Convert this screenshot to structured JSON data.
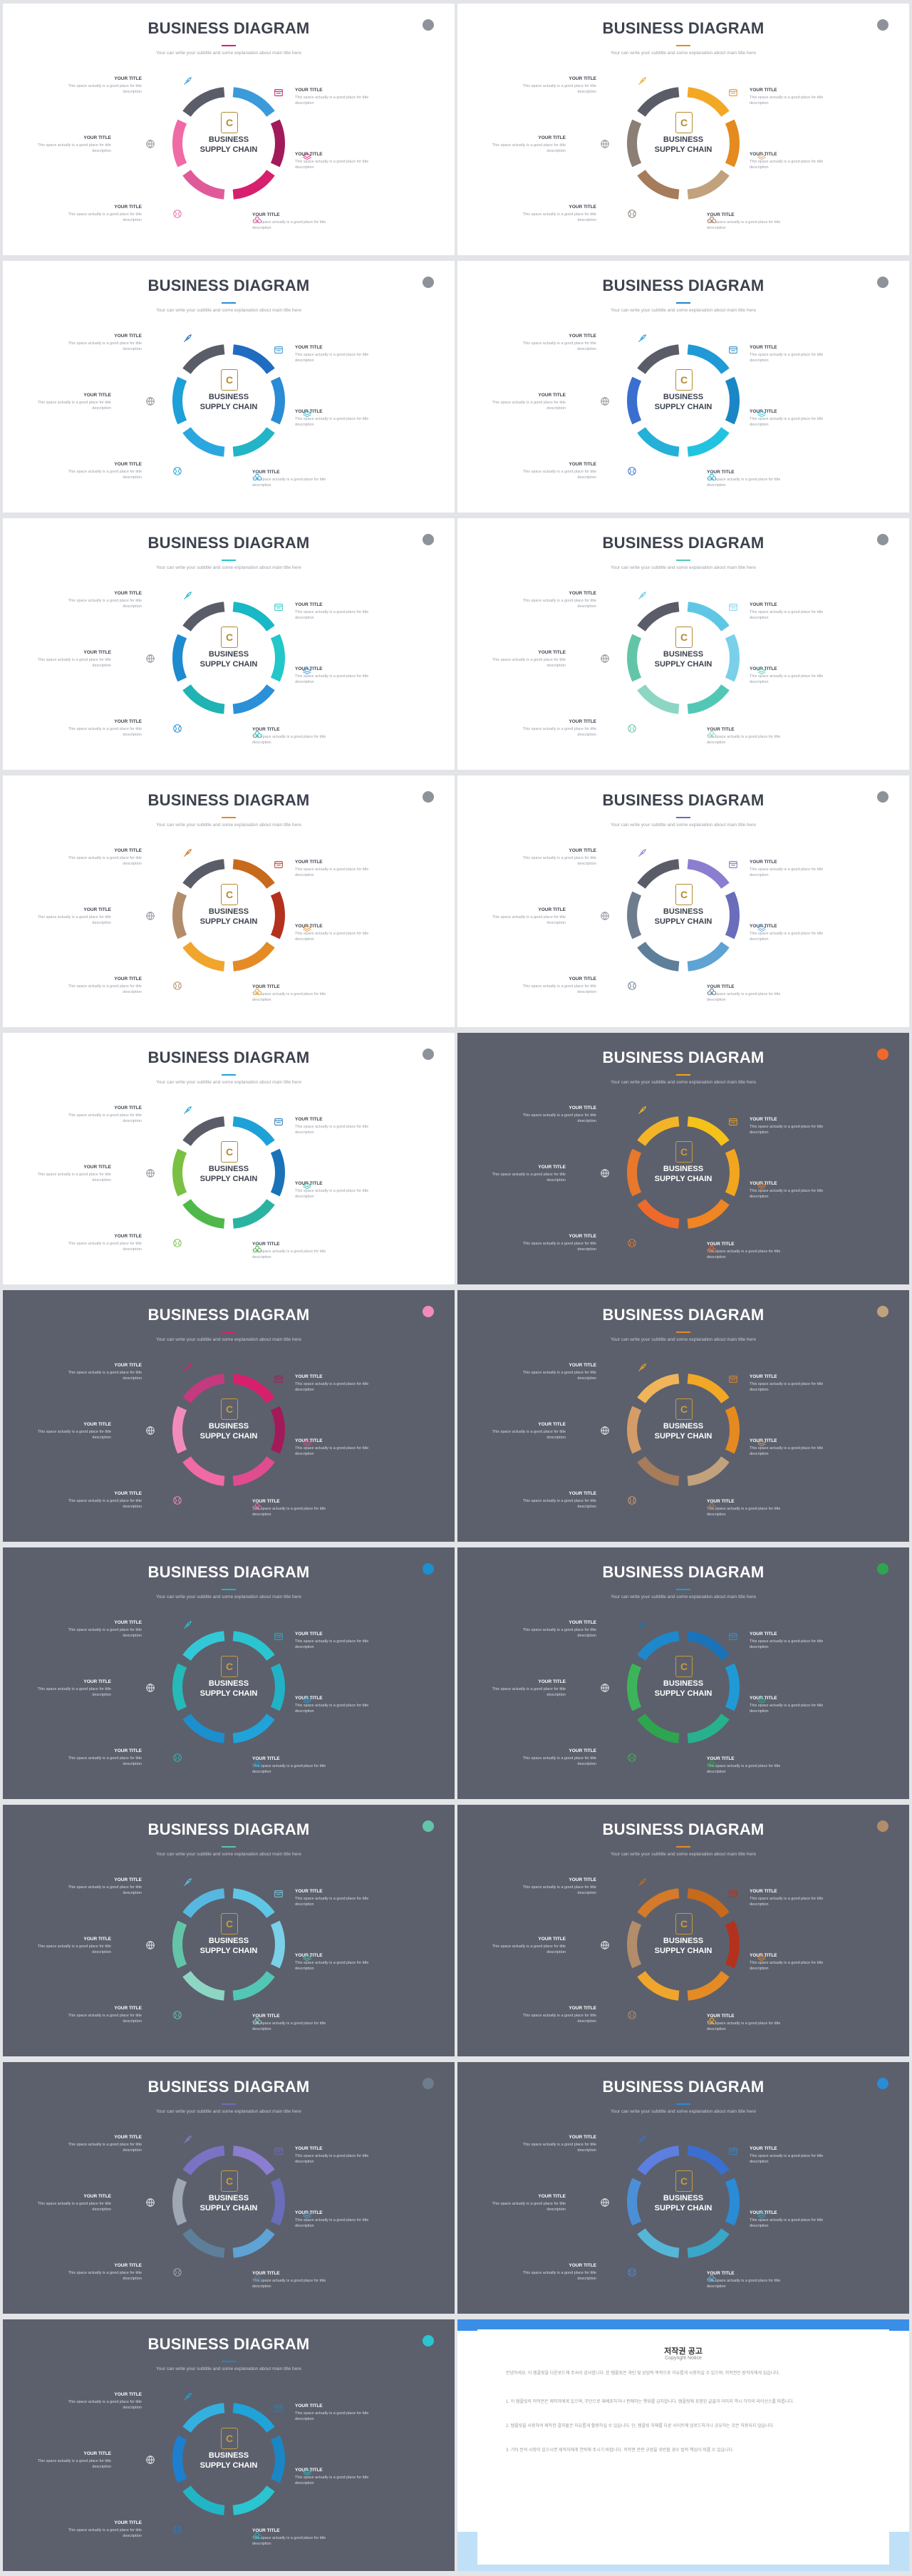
{
  "common": {
    "title": "BUSINESS DIAGRAM",
    "subtitle": "Your can write your subtitle and some explanation about main title here",
    "center_line1": "BUSINESS",
    "center_line2": "SUPPLY CHAIN",
    "logo_letter": "C",
    "item_title": "YOUR TITLE",
    "item_desc_1": "This space actually is a good place for title",
    "item_desc_2": "description",
    "icons": [
      "rocket-icon",
      "browser-icon",
      "globe-icon",
      "layers-icon",
      "basketball-icon",
      "binoculars-icon"
    ]
  },
  "slides": [
    {
      "theme": "light",
      "colors": [
        "#3b9ad9",
        "#a31a5a",
        "#d81f6e",
        "#e05a9a",
        "#f06aa6",
        "#5a5d68"
      ],
      "accent": "#d81f6e",
      "badge": "#8e929b"
    },
    {
      "theme": "light",
      "colors": [
        "#f2a825",
        "#e58a1f",
        "#c1a27c",
        "#a67c5b",
        "#8b7e74",
        "#5a5d68"
      ],
      "accent": "#e58a1f",
      "badge": "#8e929b"
    },
    {
      "theme": "light",
      "colors": [
        "#1f6cc1",
        "#2a8bd6",
        "#22b5c6",
        "#2aa7e0",
        "#1d9fd8",
        "#5a5d68"
      ],
      "accent": "#2a8bd6",
      "badge": "#8e929b"
    },
    {
      "theme": "light",
      "colors": [
        "#1f9ad6",
        "#1b86c6",
        "#22c3e0",
        "#24b0d8",
        "#3a6fd0",
        "#5a5d68"
      ],
      "accent": "#1b86c6",
      "badge": "#8e929b"
    },
    {
      "theme": "light",
      "colors": [
        "#18b8c6",
        "#22c7c9",
        "#2a90d8",
        "#1fb3b3",
        "#1e8ad0",
        "#5a5d68"
      ],
      "accent": "#22c7c9",
      "badge": "#8e929b"
    },
    {
      "theme": "light",
      "colors": [
        "#5fc7e5",
        "#7ad0e8",
        "#53c7b6",
        "#8dd6c4",
        "#63c5a8",
        "#5a5d68"
      ],
      "accent": "#53c7b6",
      "badge": "#8e929b"
    },
    {
      "theme": "light",
      "colors": [
        "#c86a1c",
        "#b4311d",
        "#e48b25",
        "#f0a52d",
        "#b28d6b",
        "#5a5d68"
      ],
      "accent": "#e48b25",
      "badge": "#8e929b"
    },
    {
      "theme": "light",
      "colors": [
        "#8b7ed0",
        "#6a6db9",
        "#5ea3d4",
        "#5e7f99",
        "#6e7d8e",
        "#5a5d68"
      ],
      "accent": "#6a6db9",
      "badge": "#8e929b"
    },
    {
      "theme": "light",
      "colors": [
        "#1ea1d6",
        "#1a73b9",
        "#2bb3a2",
        "#4fb84a",
        "#7ac043",
        "#5a5d68"
      ],
      "accent": "#1ea1d6",
      "badge": "#8e929b"
    },
    {
      "theme": "dark",
      "colors": [
        "#f5c21a",
        "#f2a51f",
        "#f08523",
        "#ef6a2a",
        "#e8782c",
        "#f4b428"
      ],
      "accent": "#f2a51f",
      "badge": "#ef6a2a"
    },
    {
      "theme": "dark",
      "colors": [
        "#d81f6e",
        "#a31a5a",
        "#e04c8f",
        "#f06aa6",
        "#f28bbd",
        "#c33a7f"
      ],
      "accent": "#d81f6e",
      "badge": "#f28bbd"
    },
    {
      "theme": "dark",
      "colors": [
        "#f2a825",
        "#e58a1f",
        "#c1a27c",
        "#a67c5b",
        "#d69c67",
        "#f0b55a"
      ],
      "accent": "#e58a1f",
      "badge": "#c1a27c"
    },
    {
      "theme": "dark",
      "colors": [
        "#2bc4d1",
        "#21b2c6",
        "#1fa3d8",
        "#1c8fcf",
        "#27b8b8",
        "#33c8d8"
      ],
      "accent": "#21b2c6",
      "badge": "#1c8fcf"
    },
    {
      "theme": "dark",
      "colors": [
        "#1a73b9",
        "#1f9ad6",
        "#27b28d",
        "#2ea650",
        "#3cb55a",
        "#1e88cc"
      ],
      "accent": "#1f9ad6",
      "badge": "#2ea650"
    },
    {
      "theme": "dark",
      "colors": [
        "#5fc7e5",
        "#7ad0e8",
        "#53c7b6",
        "#8dd6c4",
        "#63c5a8",
        "#56b8e0"
      ],
      "accent": "#53c7b6",
      "badge": "#63c5a8"
    },
    {
      "theme": "dark",
      "colors": [
        "#c86a1c",
        "#b4311d",
        "#e48b25",
        "#f0a52d",
        "#b28d6b",
        "#d47a2a"
      ],
      "accent": "#e48b25",
      "badge": "#b28d6b"
    },
    {
      "theme": "dark",
      "colors": [
        "#8b7ed0",
        "#6a6db9",
        "#5ea3d4",
        "#5e7f99",
        "#9ea7b3",
        "#7c72c4"
      ],
      "accent": "#6a6db9",
      "badge": "#6e7d8e"
    },
    {
      "theme": "dark",
      "colors": [
        "#3a6fd0",
        "#2a8bd6",
        "#3aa7c8",
        "#56b6d8",
        "#4b8fd6",
        "#5c7fe0"
      ],
      "accent": "#2a8bd6",
      "badge": "#2a8bd6"
    },
    {
      "theme": "dark",
      "colors": [
        "#1fa3d8",
        "#1b86c6",
        "#2bc4d1",
        "#22b5c6",
        "#1c7fd0",
        "#34b0e0"
      ],
      "accent": "#1b86c6",
      "badge": "#2bc4d1"
    }
  ],
  "notice": {
    "title": "저작권 공고",
    "subtitle": "Copyright Notice",
    "paragraphs": [
      "안녕하세요. 이 템플릿을 다운로드해 주셔서 감사합니다. 본 템플릿은 개인 및 상업적 목적으로 자유롭게 사용하실 수 있으며, 저작권은 원작자에게 있습니다.",
      "1. 이 템플릿의 저작권은 제작자에게 있으며, 무단으로 재배포하거나 판매하는 행위를 금지합니다. 템플릿에 포함된 글꼴과 이미지 역시 각각의 라이선스를 따릅니다.",
      "2. 템플릿을 사용하여 제작한 결과물은 자유롭게 활용하실 수 있습니다. 단, 템플릿 자체를 다른 사이트에 업로드하거나 공유하는 것은 허용되지 않습니다.",
      "3. 기타 문의 사항이 있으시면 제작자에게 연락해 주시기 바랍니다. 저작권 관련 규정을 위반할 경우 법적 책임이 따를 수 있습니다."
    ]
  }
}
